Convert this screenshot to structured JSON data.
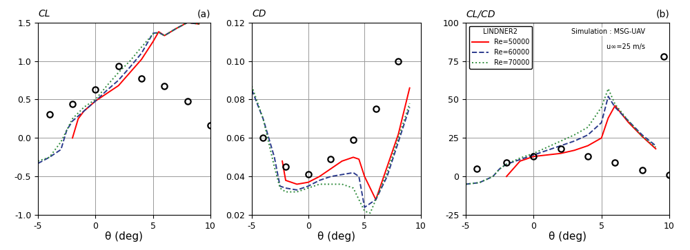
{
  "chart_data": [
    {
      "type": "line",
      "y_label": "CL",
      "x_label": "θ (deg)",
      "annotations": [
        "(a)"
      ],
      "xlim": [
        -5,
        10
      ],
      "xticks": [
        -5,
        0,
        5,
        10
      ],
      "ylim": [
        -1.0,
        1.5
      ],
      "yticks": [
        {
          "value": -1.0,
          "label": "-1.0"
        },
        {
          "value": -0.5,
          "label": "-0.5"
        },
        {
          "value": 0.0,
          "label": "0.0"
        },
        {
          "value": 0.5,
          "label": "0.5"
        },
        {
          "value": 1.0,
          "label": "1.0"
        },
        {
          "value": 1.5,
          "label": "1.5"
        }
      ],
      "grid": true,
      "series": [
        {
          "name": "Re=50000",
          "color": "#ff0000",
          "line_style": "solid",
          "type": "line",
          "x": [
            -2,
            -1.5,
            -1,
            0,
            1,
            2,
            3,
            4,
            5,
            5.5,
            6,
            7,
            8,
            9
          ],
          "values": [
            0.0,
            0.25,
            0.35,
            0.48,
            0.58,
            0.68,
            0.85,
            1.02,
            1.25,
            1.38,
            1.33,
            1.42,
            1.5,
            1.48
          ]
        },
        {
          "name": "Re=60000",
          "color": "#2b3a8c",
          "line_style": "dashed",
          "type": "line",
          "x": [
            -5,
            -4,
            -3,
            -2.5,
            -2,
            -1,
            0,
            1,
            2,
            3,
            4,
            5,
            5.5,
            6,
            7,
            8,
            9
          ],
          "values": [
            -0.33,
            -0.25,
            -0.15,
            0.1,
            0.22,
            0.35,
            0.48,
            0.62,
            0.75,
            0.92,
            1.1,
            1.36,
            1.37,
            1.33,
            1.42,
            1.5,
            1.48
          ]
        },
        {
          "name": "Re=70000",
          "color": "#2e8b3a",
          "line_style": "dotted",
          "type": "line",
          "x": [
            -5,
            -4,
            -3,
            -2.5,
            -2,
            -1,
            0,
            1,
            2,
            3,
            4,
            5,
            5.5,
            6,
            7,
            8,
            9
          ],
          "values": [
            -0.3,
            -0.25,
            -0.05,
            0.1,
            0.25,
            0.4,
            0.5,
            0.68,
            0.85,
            1.0,
            1.18,
            1.35,
            1.37,
            1.33,
            1.42,
            1.5,
            1.48
          ]
        },
        {
          "color": "#000000",
          "marker": "circle",
          "type": "scatter",
          "x": [
            -4,
            -2,
            0,
            2,
            4,
            6,
            8,
            10
          ],
          "values": [
            0.31,
            0.44,
            0.63,
            0.93,
            0.77,
            0.67,
            0.48,
            0.16
          ]
        }
      ]
    },
    {
      "type": "line",
      "y_label": "CD",
      "x_label": "θ (deg)",
      "xlim": [
        -5,
        10
      ],
      "xticks": [
        -5,
        0,
        5,
        10
      ],
      "ylim": [
        0.02,
        0.12
      ],
      "yticks": [
        0.02,
        0.04,
        0.06,
        0.08,
        {
          "value": 0.1,
          "label": "0.10"
        },
        0.12
      ],
      "grid": true,
      "series": [
        {
          "name": "Re=50000",
          "color": "#ff0000",
          "line_style": "solid",
          "type": "line",
          "x": [
            -2.3,
            -2,
            -1,
            0,
            1,
            2,
            3,
            4,
            4.5,
            5,
            6,
            7,
            8,
            9
          ],
          "values": [
            0.048,
            0.038,
            0.036,
            0.037,
            0.04,
            0.044,
            0.048,
            0.05,
            0.049,
            0.04,
            0.028,
            0.045,
            0.062,
            0.086
          ]
        },
        {
          "name": "Re=60000",
          "color": "#2b3a8c",
          "line_style": "dashed",
          "type": "line",
          "x": [
            -5,
            -4,
            -3,
            -2.5,
            -2,
            -1,
            0,
            1,
            2,
            3,
            4,
            4.5,
            5,
            6,
            7,
            8,
            9
          ],
          "values": [
            0.085,
            0.07,
            0.05,
            0.035,
            0.034,
            0.033,
            0.035,
            0.038,
            0.04,
            0.041,
            0.042,
            0.04,
            0.024,
            0.028,
            0.04,
            0.058,
            0.076
          ]
        },
        {
          "name": "Re=70000",
          "color": "#2e8b3a",
          "line_style": "dotted",
          "type": "line",
          "x": [
            -5,
            -4,
            -3,
            -2.5,
            -2,
            -1,
            0,
            1,
            2,
            3,
            4,
            5,
            5.5,
            6,
            7,
            8,
            9
          ],
          "values": [
            0.087,
            0.07,
            0.045,
            0.034,
            0.032,
            0.032,
            0.034,
            0.036,
            0.036,
            0.036,
            0.034,
            0.022,
            0.021,
            0.028,
            0.042,
            0.06,
            0.078
          ]
        },
        {
          "color": "#000000",
          "marker": "circle",
          "type": "scatter",
          "x": [
            -4,
            -2,
            0,
            2,
            4,
            6,
            8
          ],
          "values": [
            0.06,
            0.045,
            0.041,
            0.049,
            0.059,
            0.075,
            0.1
          ]
        }
      ]
    },
    {
      "type": "line",
      "y_label": "CL/CD",
      "x_label": "θ (deg)",
      "annotations": [
        "(b)"
      ],
      "legend": "upper left",
      "legend_title": "LINDNER2",
      "legend_texts": [
        "Simulation : MSG-UAV",
        "u∞=25 m/s"
      ],
      "xlim": [
        -5,
        10
      ],
      "xticks": [
        -5,
        0,
        5,
        10
      ],
      "ylim": [
        -25,
        100
      ],
      "yticks": [
        -25,
        0,
        25,
        50,
        75,
        100
      ],
      "grid": true,
      "series": [
        {
          "name": "Re=50000",
          "color": "#ff0000",
          "line_style": "solid",
          "type": "line",
          "x": [
            -2,
            -1,
            0,
            1,
            2,
            3,
            4,
            5,
            5.5,
            6,
            7,
            8,
            9
          ],
          "values": [
            0,
            10,
            13,
            14,
            15,
            17,
            20,
            25,
            38,
            46,
            35,
            26,
            18
          ]
        },
        {
          "name": "Re=60000",
          "color": "#2b3a8c",
          "line_style": "dashed",
          "type": "line",
          "x": [
            -5,
            -4,
            -3,
            -2.5,
            -2,
            -1,
            0,
            1,
            2,
            3,
            4,
            5,
            5.5,
            6,
            7,
            8,
            9
          ],
          "values": [
            -5,
            -4,
            0,
            5,
            8,
            11,
            14,
            17,
            20,
            23,
            27,
            35,
            52,
            45,
            36,
            27,
            20
          ]
        },
        {
          "name": "Re=70000",
          "color": "#2e8b3a",
          "line_style": "dotted",
          "type": "line",
          "x": [
            -5,
            -4,
            -3,
            -2.5,
            -2,
            -1,
            0,
            1,
            2,
            3,
            4,
            5,
            5.5,
            6,
            7,
            8,
            9
          ],
          "values": [
            -5,
            -4,
            0,
            5,
            8,
            12,
            15,
            19,
            23,
            27,
            32,
            45,
            57,
            47,
            36,
            26,
            19
          ]
        },
        {
          "color": "#000000",
          "marker": "circle",
          "type": "scatter",
          "x": [
            -4.2,
            -2,
            0,
            2,
            4,
            6,
            8,
            10,
            9.6
          ],
          "values": [
            5,
            9,
            13,
            18,
            13,
            9,
            4,
            1,
            78
          ]
        }
      ]
    }
  ]
}
